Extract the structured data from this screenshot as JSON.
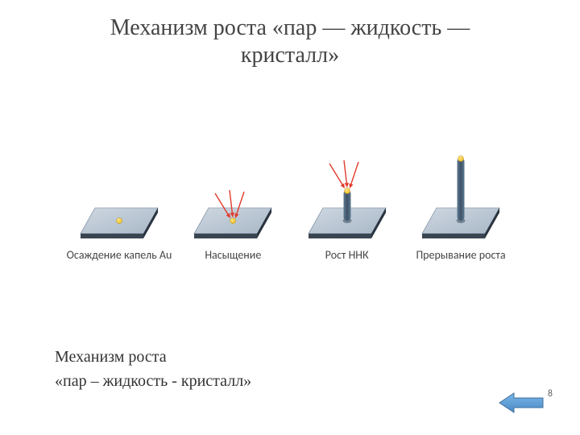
{
  "title_line1": "Механизм роста «пар — жидкость —",
  "title_line2": "кристалл»",
  "stages": [
    {
      "label": "Осаждение капель Au",
      "wire_height": 0,
      "has_arrows": false
    },
    {
      "label": "Насыщение",
      "wire_height": 0,
      "has_arrows": true
    },
    {
      "label": "Рост ННК",
      "wire_height": 38,
      "has_arrows": true
    },
    {
      "label": "Прерывание роста",
      "wire_height": 78,
      "has_arrows": false
    }
  ],
  "caption_line1": "Механизм роста",
  "caption_line2": "«пар – жидкость - кристалл»",
  "page_number": "8",
  "styling": {
    "substrate_top_fill": "#a8b7c6",
    "substrate_top_stroke": "#6b7e94",
    "substrate_side_fill": "#3a4552",
    "droplet_fill": "#f2c22a",
    "droplet_stroke": "#b48a14",
    "wire_fill": "#5c7890",
    "wire_fill_dark": "#3f5367",
    "arrow_color": "#e23a2a",
    "nav_arrow_fill": "#5b9bd5",
    "nav_arrow_stroke": "#41719c",
    "title_fontsize": 28,
    "label_fontsize": 14,
    "caption_fontsize": 20,
    "slab_w": 96,
    "slab_h": 32,
    "slab_thick": 6,
    "droplet_r": 3.5
  }
}
